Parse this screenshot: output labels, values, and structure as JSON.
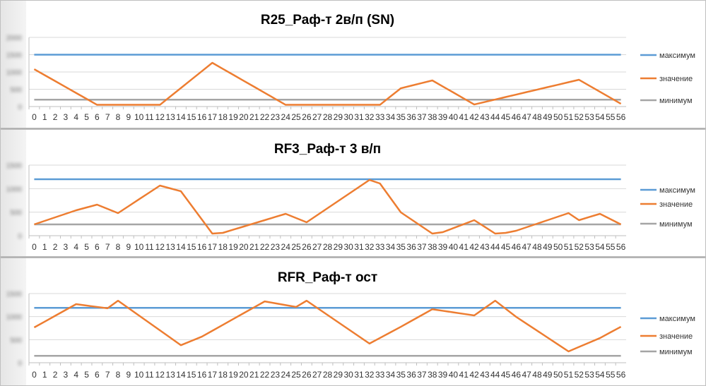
{
  "colors": {
    "max": "#5b9bd5",
    "value": "#ed7d31",
    "min": "#a5a5a5"
  },
  "chart_data": [
    {
      "type": "line",
      "title": "R25_Раф-т 2в/п (SN)",
      "ylim": [
        0,
        2000
      ],
      "yticks": [
        "2000",
        "1500",
        "1000",
        "500",
        "0"
      ],
      "legend": [
        "максимум",
        "значение",
        "минимум"
      ],
      "legend_position": "right",
      "x": [
        0,
        1,
        2,
        3,
        4,
        5,
        6,
        7,
        8,
        9,
        10,
        11,
        12,
        13,
        14,
        15,
        16,
        17,
        18,
        19,
        20,
        21,
        22,
        23,
        24,
        25,
        26,
        27,
        28,
        29,
        30,
        31,
        32,
        33,
        34,
        35,
        36,
        37,
        38,
        39,
        40,
        41,
        42,
        43,
        44,
        45,
        46,
        47,
        48,
        49,
        50,
        51,
        52,
        53,
        54,
        55,
        56
      ],
      "series": [
        {
          "name": "максимум",
          "constant": 1500
        },
        {
          "name": "минимум",
          "constant": 200
        },
        {
          "name": "значение",
          "values": [
            1080,
            908,
            737,
            565,
            393,
            222,
            50,
            50,
            50,
            50,
            50,
            50,
            50,
            293,
            536,
            779,
            1022,
            1265,
            1091,
            918,
            744,
            571,
            397,
            224,
            50,
            50,
            50,
            50,
            50,
            50,
            50,
            50,
            50,
            50,
            290,
            530,
            605,
            680,
            755,
            581,
            408,
            234,
            60,
            132,
            203,
            275,
            346,
            418,
            489,
            561,
            632,
            704,
            775,
            601,
            428,
            254,
            80
          ]
        }
      ]
    },
    {
      "type": "line",
      "title": "RF3_Раф-т 3 в/п",
      "ylim": [
        0,
        1500
      ],
      "yticks": [
        "1500",
        "1000",
        "500",
        "0"
      ],
      "legend": [
        "максимум",
        "значение",
        "минимум"
      ],
      "legend_position": "right",
      "x": [
        0,
        1,
        2,
        3,
        4,
        5,
        6,
        7,
        8,
        9,
        10,
        11,
        12,
        13,
        14,
        15,
        16,
        17,
        18,
        19,
        20,
        21,
        22,
        23,
        24,
        25,
        26,
        27,
        28,
        29,
        30,
        31,
        32,
        33,
        34,
        35,
        36,
        37,
        38,
        39,
        40,
        41,
        42,
        43,
        44,
        45,
        46,
        47,
        48,
        49,
        50,
        51,
        52,
        53,
        54,
        55,
        56
      ],
      "series": [
        {
          "name": "максимум",
          "constant": 1200
        },
        {
          "name": "минимум",
          "constant": 240
        },
        {
          "name": "значение",
          "values": [
            240,
            315,
            390,
            465,
            540,
            600,
            660,
            570,
            480,
            626,
            773,
            919,
            1065,
            1005,
            945,
            645,
            345,
            45,
            60,
            128,
            195,
            263,
            330,
            398,
            465,
            375,
            285,
            435,
            585,
            735,
            885,
            1035,
            1185,
            1110,
            803,
            495,
            345,
            195,
            45,
            75,
            160,
            245,
            330,
            188,
            45,
            60,
            105,
            180,
            255,
            330,
            405,
            480,
            330,
            398,
            465,
            353,
            240
          ]
        }
      ]
    },
    {
      "type": "line",
      "title": "RFR_Раф-т ост",
      "ylim": [
        0,
        1500
      ],
      "yticks": [
        "1500",
        "1000",
        "500",
        "0"
      ],
      "legend": [
        "максимум",
        "значение",
        "минимум"
      ],
      "legend_position": "right",
      "x": [
        0,
        1,
        2,
        3,
        4,
        5,
        6,
        7,
        8,
        9,
        10,
        11,
        12,
        13,
        14,
        15,
        16,
        17,
        18,
        19,
        20,
        21,
        22,
        23,
        24,
        25,
        26,
        27,
        28,
        29,
        30,
        31,
        32,
        33,
        34,
        35,
        36,
        37,
        38,
        39,
        40,
        41,
        42,
        43,
        44,
        45,
        46,
        47,
        48,
        49,
        50,
        51,
        52,
        53,
        54,
        55,
        56
      ],
      "series": [
        {
          "name": "максимум",
          "constant": 1190
        },
        {
          "name": "минимум",
          "constant": 150
        },
        {
          "name": "значение",
          "values": [
            765,
            891,
            1018,
            1144,
            1270,
            1240,
            1210,
            1180,
            1345,
            1184,
            1024,
            863,
            702,
            541,
            380,
            473,
            565,
            693,
            820,
            948,
            1075,
            1203,
            1330,
            1290,
            1250,
            1210,
            1345,
            1190,
            1035,
            880,
            725,
            570,
            415,
            537,
            658,
            780,
            907,
            1033,
            1160,
            1126,
            1093,
            1059,
            1025,
            1185,
            1345,
            1170,
            995,
            845,
            695,
            545,
            395,
            245,
            342,
            438,
            535,
            658,
            780
          ]
        }
      ]
    }
  ]
}
